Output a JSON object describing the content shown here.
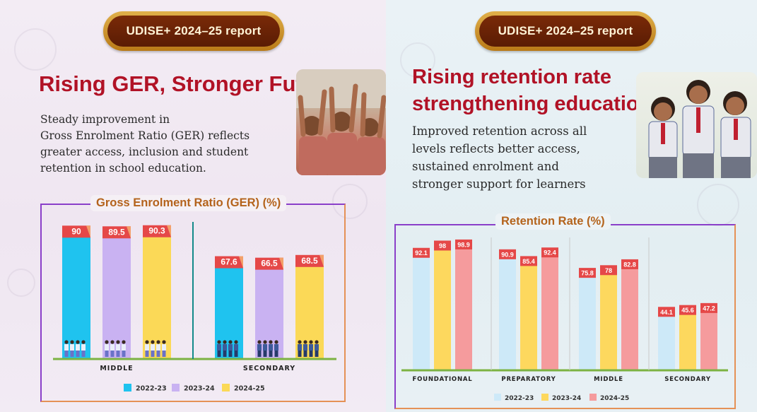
{
  "left": {
    "badge": "UDISE+ 2024–25 report",
    "title": "Rising GER, Stronger Future",
    "description": [
      "Steady improvement in",
      "Gross Enrolment Ratio (GER) reflects",
      "greater access, inclusion and student",
      "retention in school education."
    ]
  },
  "right": {
    "badge": "UDISE+ 2024–25 report",
    "title": [
      "Rising retention rate",
      "strengthening education"
    ],
    "description": [
      "Improved retention across all",
      "levels reflects better access,",
      "sustained enrolment and",
      "stronger support for learners"
    ]
  },
  "chart_data": [
    {
      "type": "bar",
      "title": "Gross Enrolment Ratio (GER) (%)",
      "categories": [
        "MIDDLE",
        "SECONDARY"
      ],
      "series": [
        {
          "name": "2022-23",
          "color": "#1fc3ef",
          "values": [
            90,
            67.6
          ]
        },
        {
          "name": "2023-24",
          "color": "#c9b2f2",
          "values": [
            89.5,
            66.5
          ]
        },
        {
          "name": "2024-25",
          "color": "#fbd957",
          "values": [
            90.3,
            68.5
          ]
        }
      ],
      "value_labels": [
        [
          "90",
          "67.6"
        ],
        [
          "89.5",
          "66.5"
        ],
        [
          "90.3",
          "68.5"
        ]
      ],
      "label_color": "#e54848",
      "ylim": [
        0,
        100
      ],
      "grid": false,
      "legend": "bottom"
    },
    {
      "type": "bar",
      "title": "Retention Rate (%)",
      "categories": [
        "FOUNDATIONAL",
        "PREPARATORY",
        "MIDDLE",
        "SECONDARY"
      ],
      "series": [
        {
          "name": "2022-23",
          "color": "#cde9f8",
          "values": [
            92.1,
            90.9,
            75.8,
            44.1
          ]
        },
        {
          "name": "2023-24",
          "color": "#fdd85e",
          "values": [
            98,
            85.4,
            78,
            45.6
          ]
        },
        {
          "name": "2024-25",
          "color": "#f59b9d",
          "values": [
            98.9,
            92.4,
            82.8,
            47.2
          ]
        }
      ],
      "value_labels": [
        [
          "92.1",
          "90.9",
          "75.8",
          "44.1"
        ],
        [
          "98",
          "85.4",
          "78",
          "45.6"
        ],
        [
          "98.9",
          "92.4",
          "82.8",
          "47.2"
        ]
      ],
      "label_color": "#e54848",
      "ylim": [
        0,
        100
      ],
      "grid": false,
      "legend": "bottom"
    }
  ]
}
